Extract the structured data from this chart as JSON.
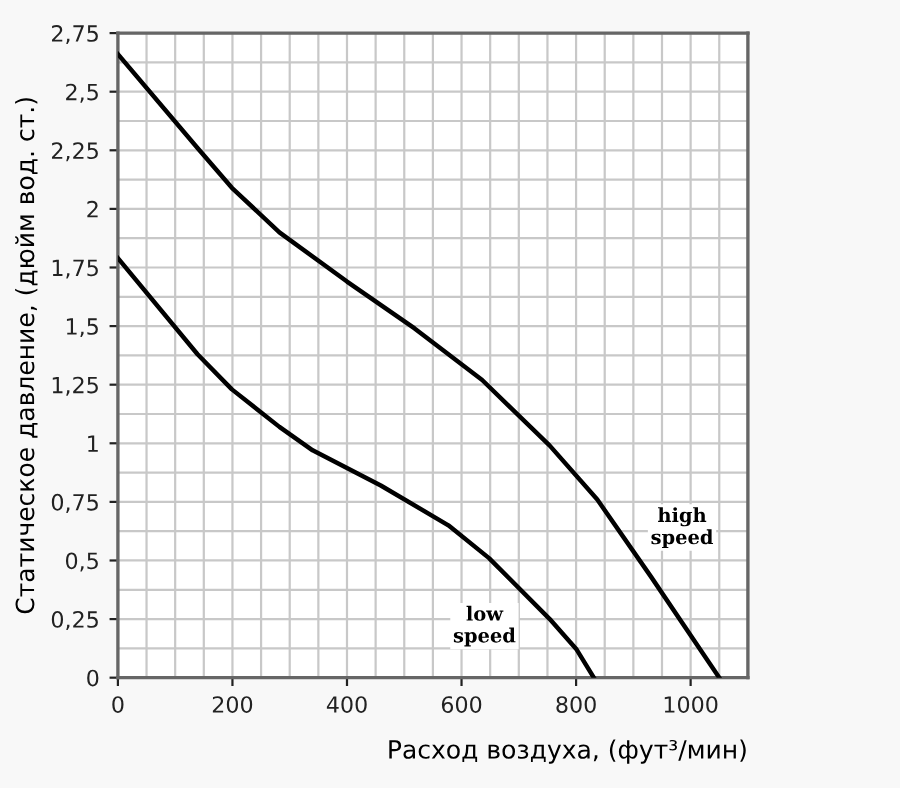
{
  "chart_data": {
    "type": "line",
    "xlabel": "Расход воздуха, (фут³/мин)",
    "ylabel": "Статическое давление, (дюйм вод. ст.)",
    "xlim": [
      0,
      1100
    ],
    "ylim": [
      0,
      2.75
    ],
    "xticks": [
      0,
      200,
      400,
      600,
      800,
      1000
    ],
    "yticks": [
      0,
      {
        "value": 0.25,
        "label": "0,25"
      },
      {
        "value": 0.5,
        "label": "0,5"
      },
      {
        "value": 0.75,
        "label": "0,75"
      },
      1,
      {
        "value": 1.25,
        "label": "1,25"
      },
      {
        "value": 1.5,
        "label": "1,5"
      },
      {
        "value": 1.75,
        "label": "1,75"
      },
      2,
      {
        "value": 2.25,
        "label": "2,25"
      },
      {
        "value": 2.5,
        "label": "2,5"
      },
      {
        "value": 2.75,
        "label": "2,75"
      }
    ],
    "grid": true,
    "marker": "none",
    "line_style": "solid",
    "series": [
      {
        "color": "#000000",
        "x": [
          0,
          139,
          199,
          282,
          400,
          518,
          636,
          754,
          837,
          931,
          1050
        ],
        "values": [
          2.66,
          2.26,
          2.09,
          1.9,
          1.69,
          1.49,
          1.27,
          0.99,
          0.76,
          0.43,
          0
        ]
      },
      {
        "color": "#000000",
        "x": [
          0,
          139,
          199,
          282,
          340,
          459,
          577,
          648,
          754,
          801,
          831
        ],
        "values": [
          1.79,
          1.38,
          1.23,
          1.07,
          0.97,
          0.82,
          0.65,
          0.51,
          0.25,
          0.12,
          0
        ]
      }
    ],
    "annotations": [
      {
        "text": "high\nspeed",
        "x": 985,
        "y": 0.64
      },
      {
        "text": "low\nspeed",
        "x": 640,
        "y": 0.22
      }
    ]
  }
}
